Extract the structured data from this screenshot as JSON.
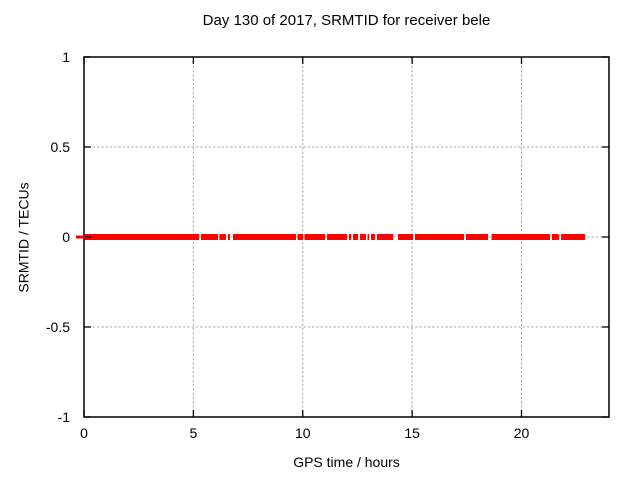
{
  "chart_data": {
    "type": "line",
    "title": "Day 130 of 2017, SRMTID for receiver bele",
    "xlabel": "GPS time / hours",
    "ylabel": "SRMTID / TECUs",
    "xlim": [
      0,
      24
    ],
    "ylim": [
      -1,
      1
    ],
    "x_ticks": [
      0,
      5,
      10,
      15,
      20
    ],
    "y_ticks": [
      1,
      0.5,
      0,
      -0.5,
      -1
    ],
    "grid": true,
    "legend": "none",
    "series": [
      {
        "name": "SRMTID",
        "color": "#ff0000",
        "value_tecus": 0,
        "line_thickness_px": 6,
        "segments_hours": [
          [
            0,
            5.26
          ],
          [
            5.35,
            6.13
          ],
          [
            6.19,
            6.49
          ],
          [
            6.58,
            6.67
          ],
          [
            6.81,
            9.69
          ],
          [
            9.76,
            10.01
          ],
          [
            10.08,
            11.02
          ],
          [
            11.11,
            12.02
          ],
          [
            12.11,
            12.21
          ],
          [
            12.3,
            12.53
          ],
          [
            12.62,
            12.89
          ],
          [
            12.96,
            13.03
          ],
          [
            13.12,
            13.3
          ],
          [
            13.39,
            14.13
          ],
          [
            14.35,
            15.04
          ],
          [
            15.13,
            17.37
          ],
          [
            17.46,
            18.47
          ],
          [
            18.63,
            21.3
          ],
          [
            21.39,
            21.71
          ],
          [
            21.81,
            22.9
          ]
        ]
      }
    ],
    "colors": {
      "data": "#ff0000",
      "grid": "#adadad",
      "border": "#000000",
      "text": "#000000",
      "background": "#ffffff"
    }
  }
}
